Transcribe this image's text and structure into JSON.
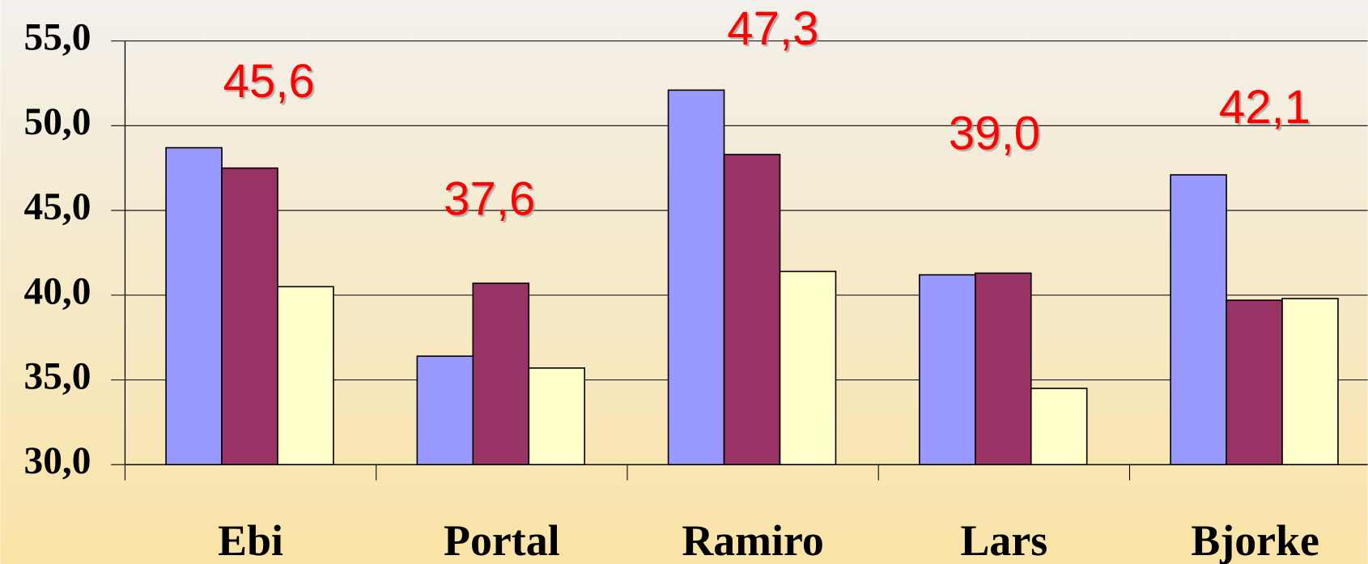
{
  "chart_data": {
    "type": "bar",
    "categories": [
      "Ebi",
      "Portal",
      "Ramiro",
      "Lars",
      "Bjorke"
    ],
    "series": [
      {
        "color": "#9999ff",
        "values": [
          48.7,
          36.4,
          52.1,
          41.2,
          47.1
        ]
      },
      {
        "color": "#993366",
        "values": [
          47.5,
          40.7,
          48.3,
          41.3,
          39.7
        ]
      },
      {
        "color": "#ffffcc",
        "values": [
          40.5,
          35.7,
          41.4,
          34.5,
          39.8
        ]
      }
    ],
    "annotations": [
      "45,6",
      "37,6",
      "47,3",
      "39,0",
      "42,1"
    ],
    "ylim": [
      30,
      55
    ],
    "yticks": [
      {
        "value": 30,
        "label": "30,0"
      },
      {
        "value": 35,
        "label": "35,0"
      },
      {
        "value": 40,
        "label": "40,0"
      },
      {
        "value": 45,
        "label": "45,0"
      },
      {
        "value": 50,
        "label": "50,0"
      },
      {
        "value": 55,
        "label": "55,0"
      }
    ],
    "grid": true
  }
}
